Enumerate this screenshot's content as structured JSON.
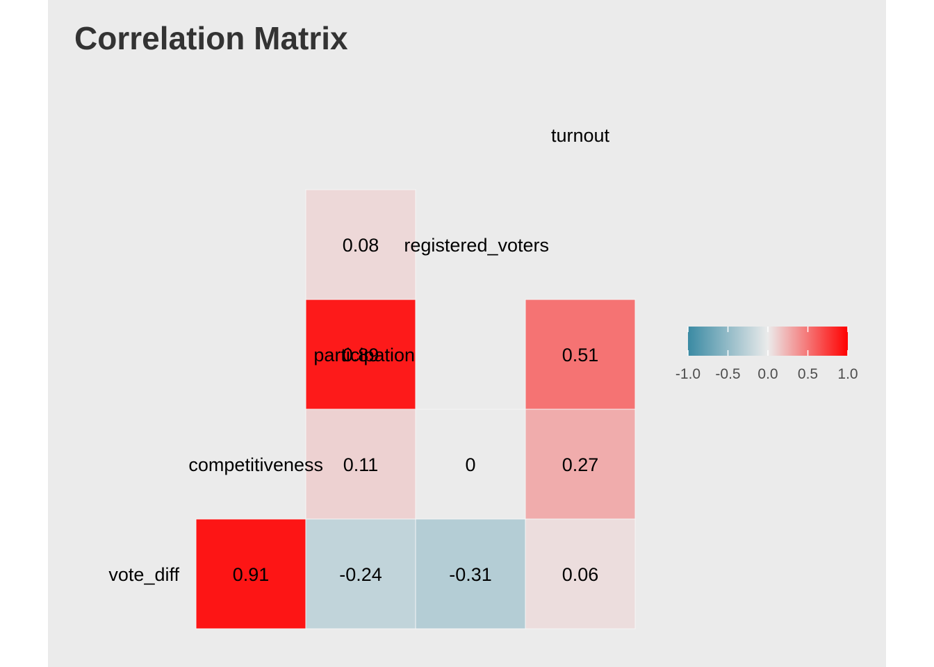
{
  "chart_data": {
    "type": "heatmap",
    "title": "Correlation Matrix",
    "variables": [
      "vote_diff",
      "competitiveness",
      "participation",
      "registered_voters",
      "turnout"
    ],
    "cells": [
      {
        "row": "turnout",
        "col": "registered_voters",
        "value": 0.08,
        "label": "0.08"
      },
      {
        "row": "participation",
        "col": "registered_voters",
        "value": 0.89,
        "label": "0.89"
      },
      {
        "row": "participation",
        "col": "turnout",
        "value": 0.51,
        "label": "0.51"
      },
      {
        "row": "competitiveness",
        "col": "registered_voters",
        "value": 0.11,
        "label": "0.11"
      },
      {
        "row": "competitiveness",
        "col": "participation",
        "value": 0,
        "label": "0"
      },
      {
        "row": "competitiveness",
        "col": "turnout",
        "value": 0.27,
        "label": "0.27"
      },
      {
        "row": "vote_diff",
        "col": "competitiveness",
        "value": 0.91,
        "label": "0.91"
      },
      {
        "row": "vote_diff",
        "col": "registered_voters",
        "value": -0.24,
        "label": "-0.24"
      },
      {
        "row": "vote_diff",
        "col": "participation",
        "value": -0.31,
        "label": "-0.31"
      },
      {
        "row": "vote_diff",
        "col": "turnout",
        "value": 0.06,
        "label": "0.06"
      }
    ],
    "diagonal_labels": [
      "vote_diff",
      "competitiveness",
      "participation",
      "registered_voters",
      "turnout"
    ],
    "color_scale": {
      "low": "#3a8aa3",
      "mid": "#ebebeb",
      "high": "#ff0000",
      "limits": [
        -1.0,
        1.0
      ],
      "ticks": [
        -1.0,
        -0.5,
        0.0,
        0.5,
        1.0
      ],
      "tick_labels": [
        "-1.0",
        "-0.5",
        "0.0",
        "0.5",
        "1.0"
      ]
    },
    "legend_position": "right",
    "grid": false
  }
}
